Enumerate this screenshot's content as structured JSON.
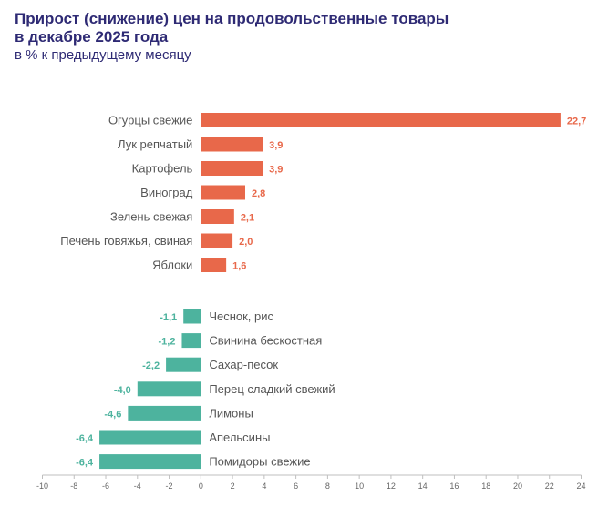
{
  "chart_data": {
    "type": "bar",
    "orientation": "horizontal",
    "title_line1": "Прирост (снижение) цен на продовольственные товары",
    "title_line2": "в декабре 2025 года",
    "subtitle": "в % к предыдущему месяцу",
    "positive_color": "#e8684a",
    "negative_color": "#4db39e",
    "positive": [
      {
        "label": "Огурцы свежие",
        "value": 22.7,
        "value_label": "22,7"
      },
      {
        "label": "Лук репчатый",
        "value": 3.9,
        "value_label": "3,9"
      },
      {
        "label": "Картофель",
        "value": 3.9,
        "value_label": "3,9"
      },
      {
        "label": "Виноград",
        "value": 2.8,
        "value_label": "2,8"
      },
      {
        "label": "Зелень свежая",
        "value": 2.1,
        "value_label": "2,1"
      },
      {
        "label": "Печень говяжья, свиная",
        "value": 2.0,
        "value_label": "2,0"
      },
      {
        "label": "Яблоки",
        "value": 1.6,
        "value_label": "1,6"
      }
    ],
    "negative": [
      {
        "label": "Чеснок, рис",
        "value": -1.1,
        "value_label": "-1,1"
      },
      {
        "label": "Свинина бескостная",
        "value": -1.2,
        "value_label": "-1,2"
      },
      {
        "label": "Сахар-песок",
        "value": -2.2,
        "value_label": "-2,2"
      },
      {
        "label": "Перец сладкий свежий",
        "value": -4.0,
        "value_label": "-4,0"
      },
      {
        "label": "Лимоны",
        "value": -4.6,
        "value_label": "-4,6"
      },
      {
        "label": "Апельсины",
        "value": -6.4,
        "value_label": "-6,4"
      },
      {
        "label": "Помидоры свежие",
        "value": -6.4,
        "value_label": "-6,4"
      }
    ],
    "xlim": [
      -10,
      24
    ],
    "xticks": [
      -10,
      -8,
      -6,
      -4,
      -2,
      0,
      2,
      4,
      6,
      8,
      10,
      12,
      14,
      16,
      18,
      20,
      22,
      24
    ],
    "grid": false,
    "legend": "none"
  }
}
